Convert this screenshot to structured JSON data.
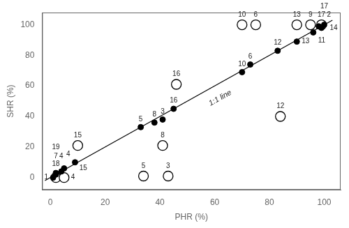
{
  "chart_data": {
    "type": "scatter",
    "xlabel": "PHR (%)",
    "ylabel": "SHR (%)",
    "xlim": [
      -3,
      106
    ],
    "ylim": [
      -8,
      108
    ],
    "xticks": [
      0,
      20,
      40,
      60,
      80,
      100
    ],
    "yticks": [
      0,
      20,
      40,
      60,
      80,
      100
    ],
    "grid": false,
    "series": [
      {
        "type": "line",
        "color": "#000000",
        "line_style": "solid",
        "marker": "none",
        "x": [
          -2,
          103
        ],
        "values": [
          -2,
          103
        ]
      },
      {
        "type": "scatter",
        "color": "#000000",
        "marker": "open_circle",
        "x": [
          2,
          5,
          10,
          34,
          41,
          43,
          46,
          70,
          75,
          84,
          90,
          95,
          99
        ],
        "values": [
          0,
          0,
          21,
          1,
          21,
          1,
          61,
          100,
          100,
          40,
          100,
          100,
          100
        ],
        "point_labels": [
          "18",
          "4",
          "15",
          "5",
          "8",
          "3",
          "16",
          "10",
          "6",
          "12",
          "13",
          "9",
          "17"
        ]
      },
      {
        "type": "scatter",
        "color": "#000000",
        "marker": "circle",
        "x": [
          1,
          2,
          2,
          4,
          5,
          9,
          33,
          38,
          41,
          45,
          70,
          73,
          83,
          90,
          96,
          98,
          99,
          100
        ],
        "values": [
          0,
          2,
          3,
          4,
          6,
          10,
          33,
          36,
          38,
          45,
          69,
          74,
          83,
          89,
          95,
          99,
          98,
          100
        ],
        "point_labels": [
          "1",
          "7",
          "19",
          "4",
          "15",
          "4",
          "5",
          "8",
          "3",
          "16",
          "10",
          "6",
          "12",
          "13",
          "11",
          "2",
          "14",
          "17"
        ]
      }
    ],
    "annotations": [
      {
        "text": "1:1 line",
        "x": 62,
        "y": 52
      }
    ]
  }
}
